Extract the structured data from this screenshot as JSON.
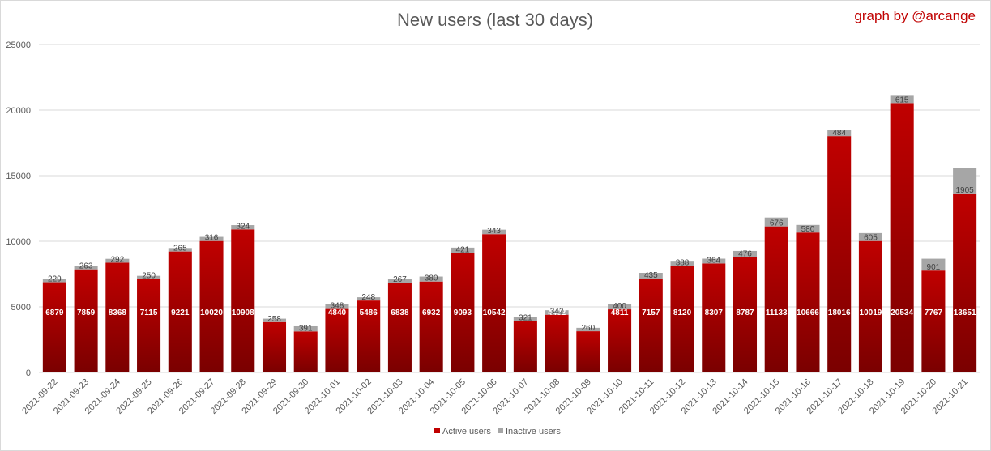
{
  "chart_data": {
    "type": "bar",
    "stacked": true,
    "title": "New users (last 30 days)",
    "credit": "graph by @arcange",
    "xlabel": "",
    "ylabel": "",
    "ylim": [
      0,
      25000
    ],
    "yticks": [
      0,
      5000,
      10000,
      15000,
      20000,
      25000
    ],
    "grid": true,
    "legend_position": "bottom",
    "categories": [
      "2021-09-22",
      "2021-09-23",
      "2021-09-24",
      "2021-09-25",
      "2021-09-26",
      "2021-09-27",
      "2021-09-28",
      "2021-09-29",
      "2021-09-30",
      "2021-10-01",
      "2021-10-02",
      "2021-10-03",
      "2021-10-04",
      "2021-10-05",
      "2021-10-06",
      "2021-10-07",
      "2021-10-08",
      "2021-10-09",
      "2021-10-10",
      "2021-10-11",
      "2021-10-12",
      "2021-10-13",
      "2021-10-14",
      "2021-10-15",
      "2021-10-16",
      "2021-10-17",
      "2021-10-18",
      "2021-10-19",
      "2021-10-20",
      "2021-10-21"
    ],
    "series": [
      {
        "name": "Active users",
        "color": "#c00000",
        "values": [
          6879,
          7859,
          8368,
          7115,
          9221,
          10020,
          10908,
          3841,
          3129,
          4840,
          5486,
          6838,
          6932,
          9093,
          10542,
          3933,
          4402,
          3143,
          4811,
          7157,
          8120,
          8307,
          8787,
          11133,
          10666,
          18016,
          10019,
          20534,
          7767,
          13651
        ]
      },
      {
        "name": "Inactive users",
        "color": "#a6a6a6",
        "values": [
          229,
          263,
          292,
          250,
          265,
          316,
          324,
          258,
          391,
          348,
          248,
          267,
          380,
          421,
          343,
          321,
          342,
          260,
          400,
          435,
          388,
          364,
          476,
          676,
          580,
          484,
          605,
          615,
          901,
          1905
        ]
      }
    ]
  }
}
